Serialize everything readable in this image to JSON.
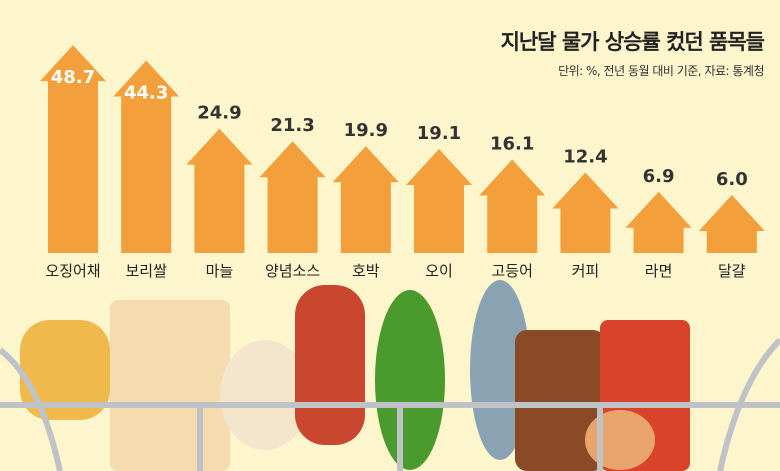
{
  "chart_data": {
    "type": "bar",
    "title": "지난달 물가 상승률 컸던 품목들",
    "subtitle": "단위: %, 전년 동월 대비 기준, 자료: 통계청",
    "categories": [
      "오징어채",
      "보리쌀",
      "마늘",
      "양념소스",
      "호박",
      "오이",
      "고등어",
      "커피",
      "라면",
      "달걀"
    ],
    "values": [
      48.7,
      44.3,
      24.9,
      21.3,
      19.9,
      19.1,
      16.1,
      12.4,
      6.9,
      6.0
    ],
    "value_labels": [
      "48.7",
      "44.3",
      "24.9",
      "21.3",
      "19.9",
      "19.1",
      "16.1",
      "12.4",
      "6.9",
      "6.0"
    ],
    "bar_style": "upward-arrow",
    "colors": {
      "bar": "#f3a03c",
      "background": "#fdf5cc",
      "label": "#333333"
    }
  }
}
